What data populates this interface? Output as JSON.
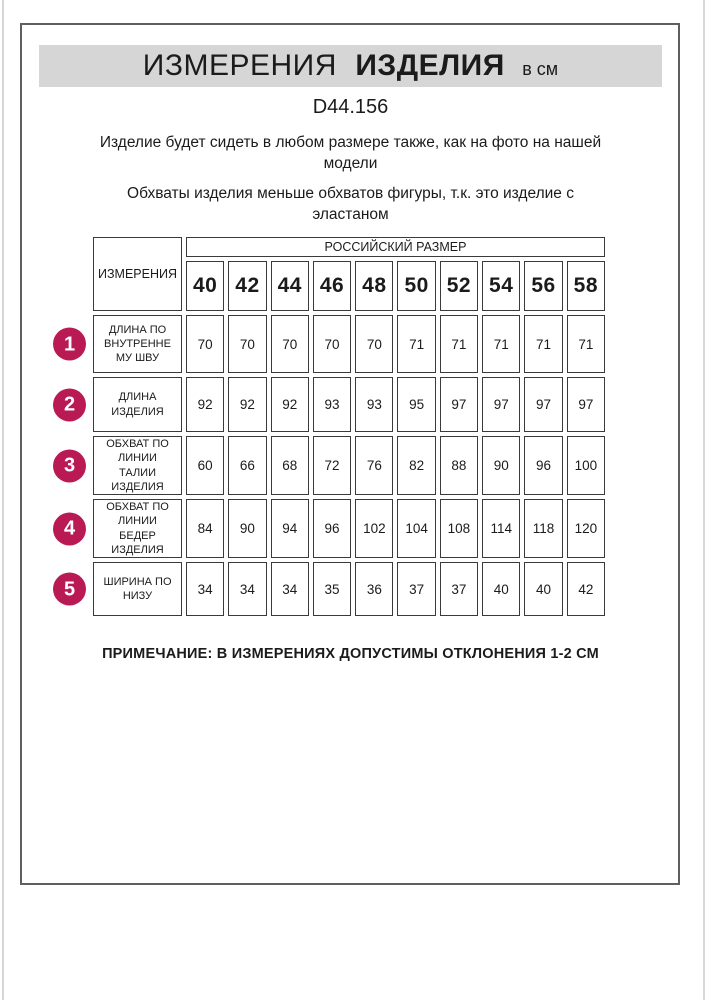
{
  "header": {
    "title_regular": "ИЗМЕРЕНИЯ",
    "title_bold": "ИЗДЕЛИЯ",
    "title_unit": "в см",
    "article": "D44.156"
  },
  "intro": {
    "line1": "Изделие будет сидеть в любом размере также, как на фото на нашей\nмодели",
    "line2": "Обхваты изделия меньше обхватов фигуры, т.к. это изделие с\nэластаном"
  },
  "table": {
    "corner_header": "ИЗМЕРЕНИЯ",
    "group_header": "РОССИЙСКИЙ РАЗМЕР",
    "sizes": [
      "40",
      "42",
      "44",
      "46",
      "48",
      "50",
      "52",
      "54",
      "56",
      "58"
    ],
    "rows": [
      {
        "num": "1",
        "label": "ДЛИНА ПО\nВНУТРЕННЕ\nМУ ШВУ",
        "values": [
          70,
          70,
          70,
          70,
          70,
          71,
          71,
          71,
          71,
          71
        ]
      },
      {
        "num": "2",
        "label": "ДЛИНА\nИЗДЕЛИЯ",
        "values": [
          92,
          92,
          92,
          93,
          93,
          95,
          97,
          97,
          97,
          97
        ]
      },
      {
        "num": "3",
        "label": "ОБХВАТ ПО\nЛИНИИ\nТАЛИИ\nИЗДЕЛИЯ",
        "values": [
          60,
          66,
          68,
          72,
          76,
          82,
          88,
          90,
          96,
          100
        ]
      },
      {
        "num": "4",
        "label": "ОБХВАТ ПО\nЛИНИИ\nБЕДЕР\nИЗДЕЛИЯ",
        "values": [
          84,
          90,
          94,
          96,
          102,
          104,
          108,
          114,
          118,
          120
        ]
      },
      {
        "num": "5",
        "label": "ШИРИНА ПО\nНИЗУ",
        "values": [
          34,
          34,
          34,
          35,
          36,
          37,
          37,
          40,
          40,
          42
        ]
      }
    ]
  },
  "footer": {
    "note": "ПРИМЕЧАНИЕ: В ИЗМЕРЕНИЯХ ДОПУСТИМЫ ОТКЛОНЕНИЯ 1-2 СМ"
  },
  "colors": {
    "accent_badge": "#b91a54",
    "title_bar_bg": "#d6d6d6",
    "page_border": "#5f5f5f"
  }
}
